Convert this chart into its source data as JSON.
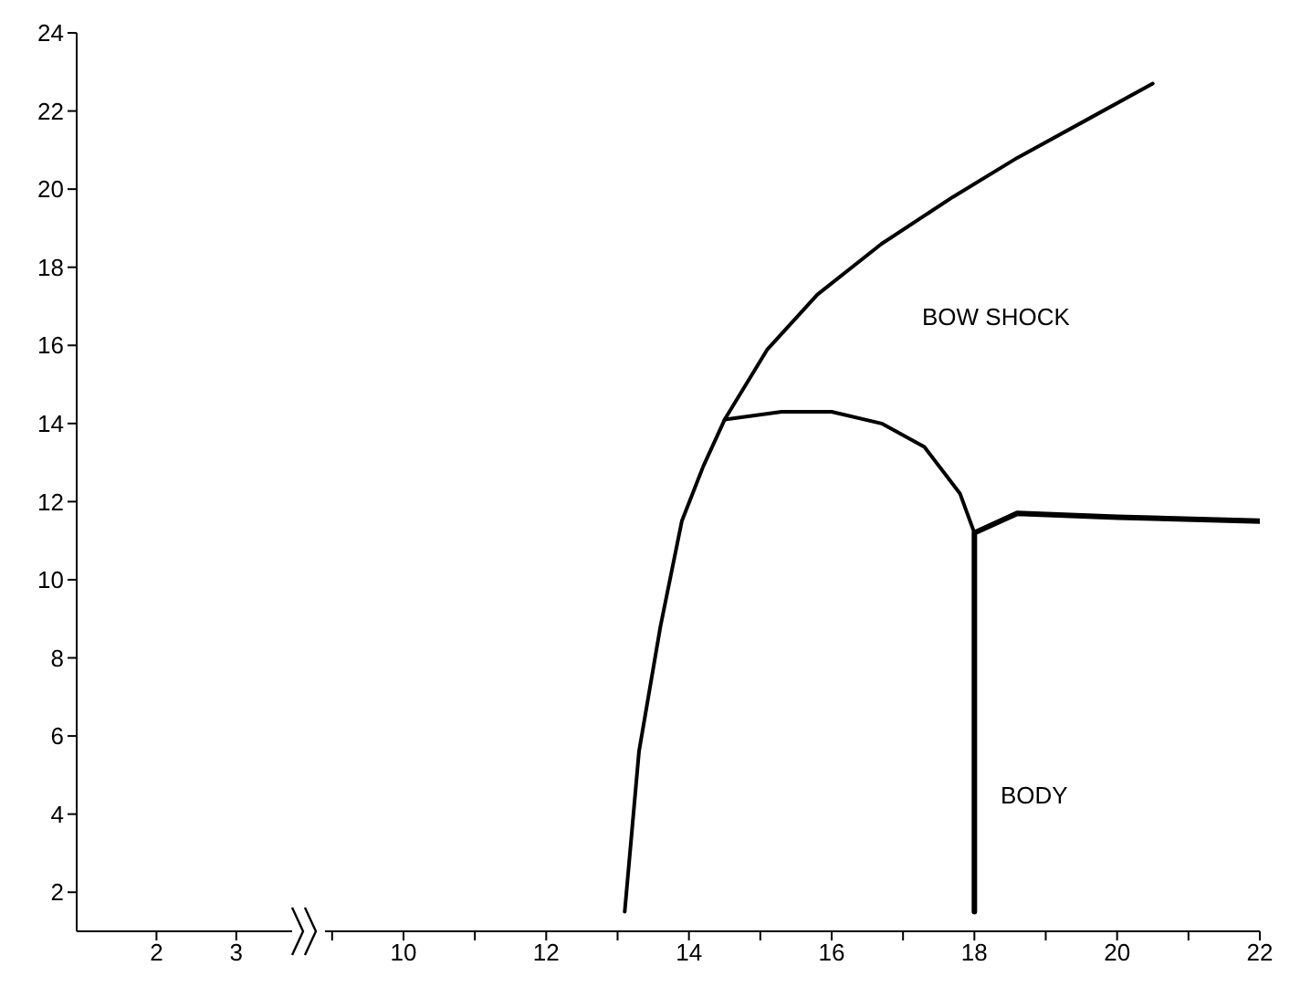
{
  "chart_data": [
    {
      "type": "line",
      "xlim": [
        1,
        3.7
      ],
      "xticks": [
        2,
        3
      ],
      "ylim": [
        1,
        24
      ],
      "yticks": [
        2,
        4,
        6,
        8,
        10,
        12,
        14,
        16,
        18,
        20,
        22,
        24
      ],
      "grid": false,
      "legend": false,
      "marker": "none"
    },
    {
      "type": "line",
      "xlim": [
        8.9,
        22
      ],
      "xticks": [
        {
          "value": 9,
          "label": null
        },
        10,
        {
          "value": 11,
          "label": null
        },
        12,
        {
          "value": 13,
          "label": null
        },
        14,
        {
          "value": 15,
          "label": null
        },
        16,
        {
          "value": 17,
          "label": null
        },
        18,
        {
          "value": 19,
          "label": null
        },
        20,
        {
          "value": 21,
          "label": null
        },
        22
      ],
      "ylim": [
        1,
        24
      ],
      "yticks": [
        2,
        4,
        6,
        8,
        10,
        12,
        14,
        16,
        18,
        20,
        22,
        24
      ],
      "tick_labels": "x",
      "grid": false,
      "legend": false,
      "marker": "none",
      "line_style": "solid",
      "annotations": [
        "BOW SHOCK",
        "BODY"
      ],
      "series": [
        {
          "color": "#000000",
          "x": [
            13.1,
            13.3,
            13.6,
            13.9,
            14.2,
            14.5,
            15.1,
            15.8,
            16.7,
            17.7,
            18.6,
            19.6,
            20.5
          ],
          "values": [
            1.5,
            5.6,
            8.8,
            11.5,
            12.9,
            14.1,
            15.9,
            17.3,
            18.6,
            19.8,
            20.8,
            21.8,
            22.7
          ]
        },
        {
          "color": "#000000",
          "x": [
            14.5,
            15.3,
            16.0,
            16.7,
            17.3,
            17.8,
            18.0
          ],
          "values": [
            14.1,
            14.3,
            14.3,
            14.0,
            13.4,
            12.2,
            11.2
          ]
        },
        {
          "color": "#000000",
          "x": [
            18.0,
            18.0,
            18.6,
            20.0,
            22.0
          ],
          "values": [
            1.5,
            11.2,
            11.7,
            11.6,
            11.5
          ]
        }
      ]
    }
  ]
}
